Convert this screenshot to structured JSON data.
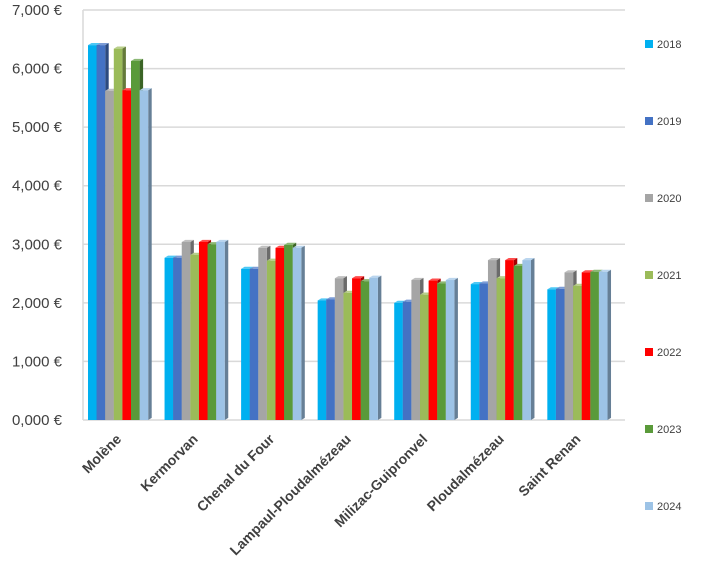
{
  "chart_data": {
    "type": "bar",
    "title": "",
    "xlabel": "",
    "ylabel": "",
    "ylim": [
      0,
      7000
    ],
    "yticks": [
      0,
      1000,
      2000,
      3000,
      4000,
      5000,
      6000,
      7000
    ],
    "ytick_labels": [
      "0,000 €",
      "1,000 €",
      "2,000 €",
      "3,000 €",
      "4,000 €",
      "5,000 €",
      "6,000 €",
      "7,000 €"
    ],
    "grid": true,
    "legend_position": "right",
    "categories": [
      "Molène",
      "Kermorvan",
      "Chenal du Four",
      "Lampaul-Ploudalmézeau",
      "Milizac-Guipronvel",
      "Ploudalmézeau",
      "Saint Renan"
    ],
    "series": [
      {
        "name": "2018",
        "color": "#00b0f0",
        "values": [
          6400,
          2770,
          2580,
          2040,
          2000,
          2320,
          2230
        ]
      },
      {
        "name": "2019",
        "color": "#4472c4",
        "values": [
          6400,
          2770,
          2580,
          2060,
          2020,
          2330,
          2240
        ]
      },
      {
        "name": "2020",
        "color": "#a5a5a5",
        "values": [
          5620,
          3040,
          2940,
          2420,
          2390,
          2730,
          2520
        ]
      },
      {
        "name": "2021",
        "color": "#9bbb59",
        "values": [
          6340,
          2820,
          2720,
          2170,
          2140,
          2420,
          2290
        ]
      },
      {
        "name": "2022",
        "color": "#ff0000",
        "values": [
          5630,
          3040,
          2940,
          2420,
          2380,
          2730,
          2520
        ]
      },
      {
        "name": "2023",
        "color": "#5a9a3a",
        "values": [
          6130,
          3000,
          2990,
          2370,
          2330,
          2630,
          2530
        ]
      },
      {
        "name": "2024",
        "color": "#9dc3e6",
        "values": [
          5630,
          3040,
          2940,
          2430,
          2390,
          2730,
          2530
        ]
      }
    ]
  }
}
